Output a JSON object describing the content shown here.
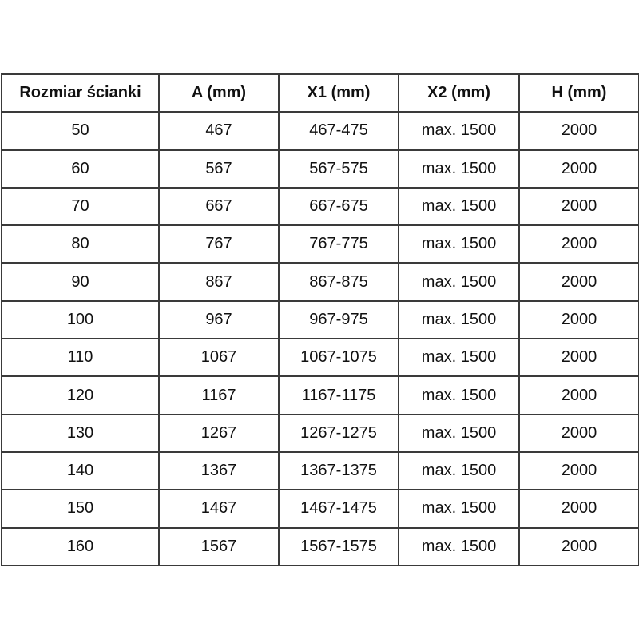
{
  "table": {
    "headers": [
      "Rozmiar ścianki",
      "A (mm)",
      "X1 (mm)",
      "X2 (mm)",
      "H (mm)"
    ],
    "rows": [
      [
        "50",
        "467",
        "467-475",
        "max. 1500",
        "2000"
      ],
      [
        "60",
        "567",
        "567-575",
        "max. 1500",
        "2000"
      ],
      [
        "70",
        "667",
        "667-675",
        "max. 1500",
        "2000"
      ],
      [
        "80",
        "767",
        "767-775",
        "max. 1500",
        "2000"
      ],
      [
        "90",
        "867",
        "867-875",
        "max. 1500",
        "2000"
      ],
      [
        "100",
        "967",
        "967-975",
        "max. 1500",
        "2000"
      ],
      [
        "110",
        "1067",
        "1067-1075",
        "max. 1500",
        "2000"
      ],
      [
        "120",
        "1167",
        "1167-1175",
        "max. 1500",
        "2000"
      ],
      [
        "130",
        "1267",
        "1267-1275",
        "max. 1500",
        "2000"
      ],
      [
        "140",
        "1367",
        "1367-1375",
        "max. 1500",
        "2000"
      ],
      [
        "150",
        "1467",
        "1467-1475",
        "max. 1500",
        "2000"
      ],
      [
        "160",
        "1567",
        "1567-1575",
        "max. 1500",
        "2000"
      ]
    ]
  }
}
